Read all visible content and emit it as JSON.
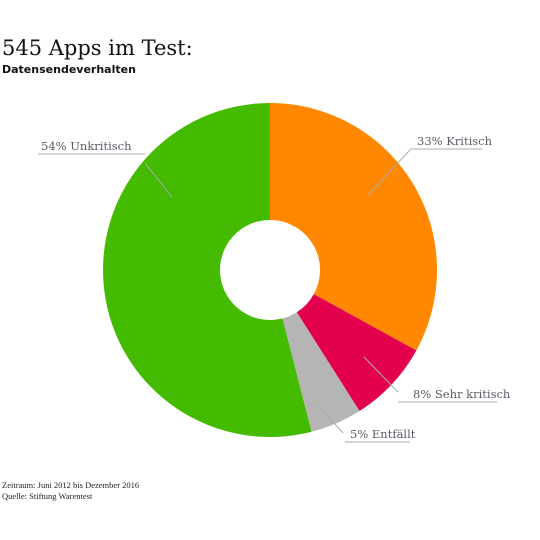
{
  "header": {
    "title": "545 Apps im Test:",
    "subtitle": "Datensendeverhalten"
  },
  "chart_data": {
    "type": "pie",
    "variant": "donut",
    "title": "545 Apps im Test:",
    "subtitle": "Datensendeverhalten",
    "unit": "%",
    "slices": [
      {
        "label": "33% Kritisch",
        "value": 33,
        "color": "#ff8800"
      },
      {
        "label": "8% Sehr kritisch",
        "value": 8,
        "color": "#e2004f"
      },
      {
        "label": "5% Entfällt",
        "value": 5,
        "color": "#b5b5b5"
      },
      {
        "label": "54% Unkritisch",
        "value": 54,
        "color": "#44bb00"
      }
    ],
    "start_angle": "12 o'clock",
    "direction": "clockwise",
    "legend": "none"
  },
  "footer": {
    "period": "Zeitraum: Juni 2012 bis Dezember 2016",
    "source": "Quelle: Stiftung Warentest"
  }
}
